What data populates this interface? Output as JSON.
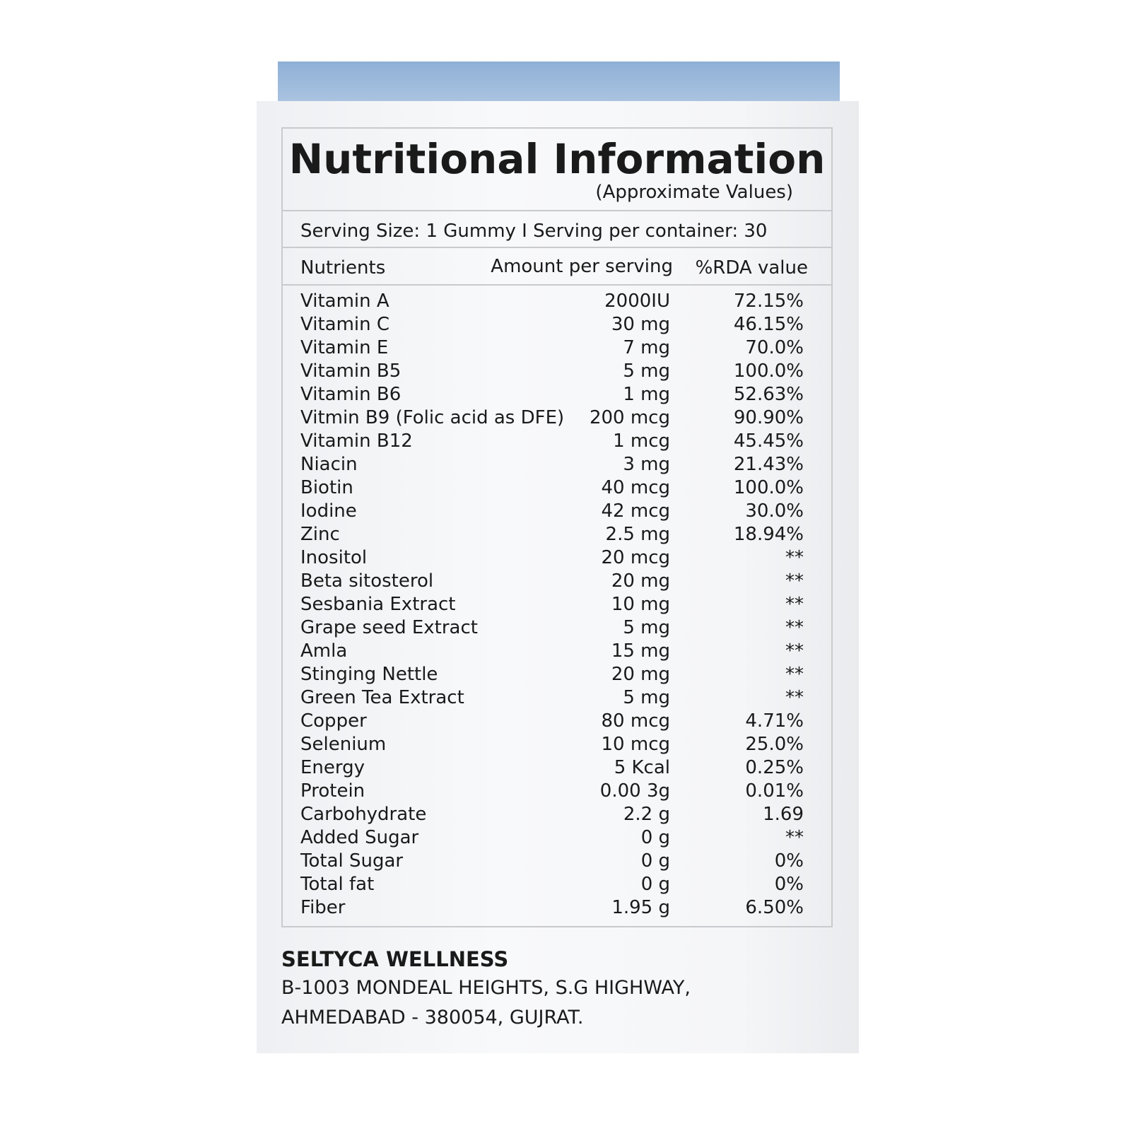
{
  "header": {
    "title": "Nutritional Information",
    "subtitle": "(Approximate Values)"
  },
  "serving": "Serving Size: 1 Gummy I Serving per container: 30",
  "table": {
    "columns": [
      "Nutrients",
      "Amount per serving",
      "%RDA value"
    ],
    "rows": [
      [
        "Vitamin A",
        "2000IU",
        "72.15%"
      ],
      [
        "Vitamin C",
        "30 mg",
        "46.15%"
      ],
      [
        "Vitamin E",
        "7 mg",
        "70.0%"
      ],
      [
        "Vitamin B5",
        "5 mg",
        "100.0%"
      ],
      [
        "Vitamin B6",
        "1 mg",
        "52.63%"
      ],
      [
        "Vitmin B9 (Folic acid as DFE)",
        "200 mcg",
        "90.90%"
      ],
      [
        "Vitamin B12",
        "1 mcg",
        "45.45%"
      ],
      [
        "Niacin",
        "3 mg",
        "21.43%"
      ],
      [
        "Biotin",
        "40 mcg",
        "100.0%"
      ],
      [
        "Iodine",
        "42 mcg",
        "30.0%"
      ],
      [
        "Zinc",
        "2.5 mg",
        "18.94%"
      ],
      [
        "Inositol",
        "20 mcg",
        "**"
      ],
      [
        "Beta sitosterol",
        "20 mg",
        "**"
      ],
      [
        "Sesbania Extract",
        "10 mg",
        "**"
      ],
      [
        "Grape seed Extract",
        "5 mg",
        "**"
      ],
      [
        "Amla",
        "15 mg",
        "**"
      ],
      [
        "Stinging Nettle",
        "20 mg",
        "**"
      ],
      [
        "Green Tea Extract",
        "5 mg",
        "**"
      ],
      [
        "Copper",
        "80 mcg",
        "4.71%"
      ],
      [
        "Selenium",
        "10 mcg",
        "25.0%"
      ],
      [
        "Energy",
        "5 Kcal",
        "0.25%"
      ],
      [
        "Protein",
        "0.00 3g",
        "0.01%"
      ],
      [
        "Carbohydrate",
        "2.2 g",
        "1.69"
      ],
      [
        "Added Sugar",
        "0 g",
        "**"
      ],
      [
        "Total Sugar",
        "0 g",
        "0%"
      ],
      [
        "Total fat",
        "0 g",
        "0%"
      ],
      [
        "Fiber",
        "1.95 g",
        "6.50%"
      ]
    ]
  },
  "footer": {
    "company": "SELTYCA WELLNESS",
    "address": [
      "B-1003 MONDEAL HEIGHTS, S.G HIGHWAY,",
      "AHMEDABAD - 380054, GUJRAT."
    ]
  }
}
